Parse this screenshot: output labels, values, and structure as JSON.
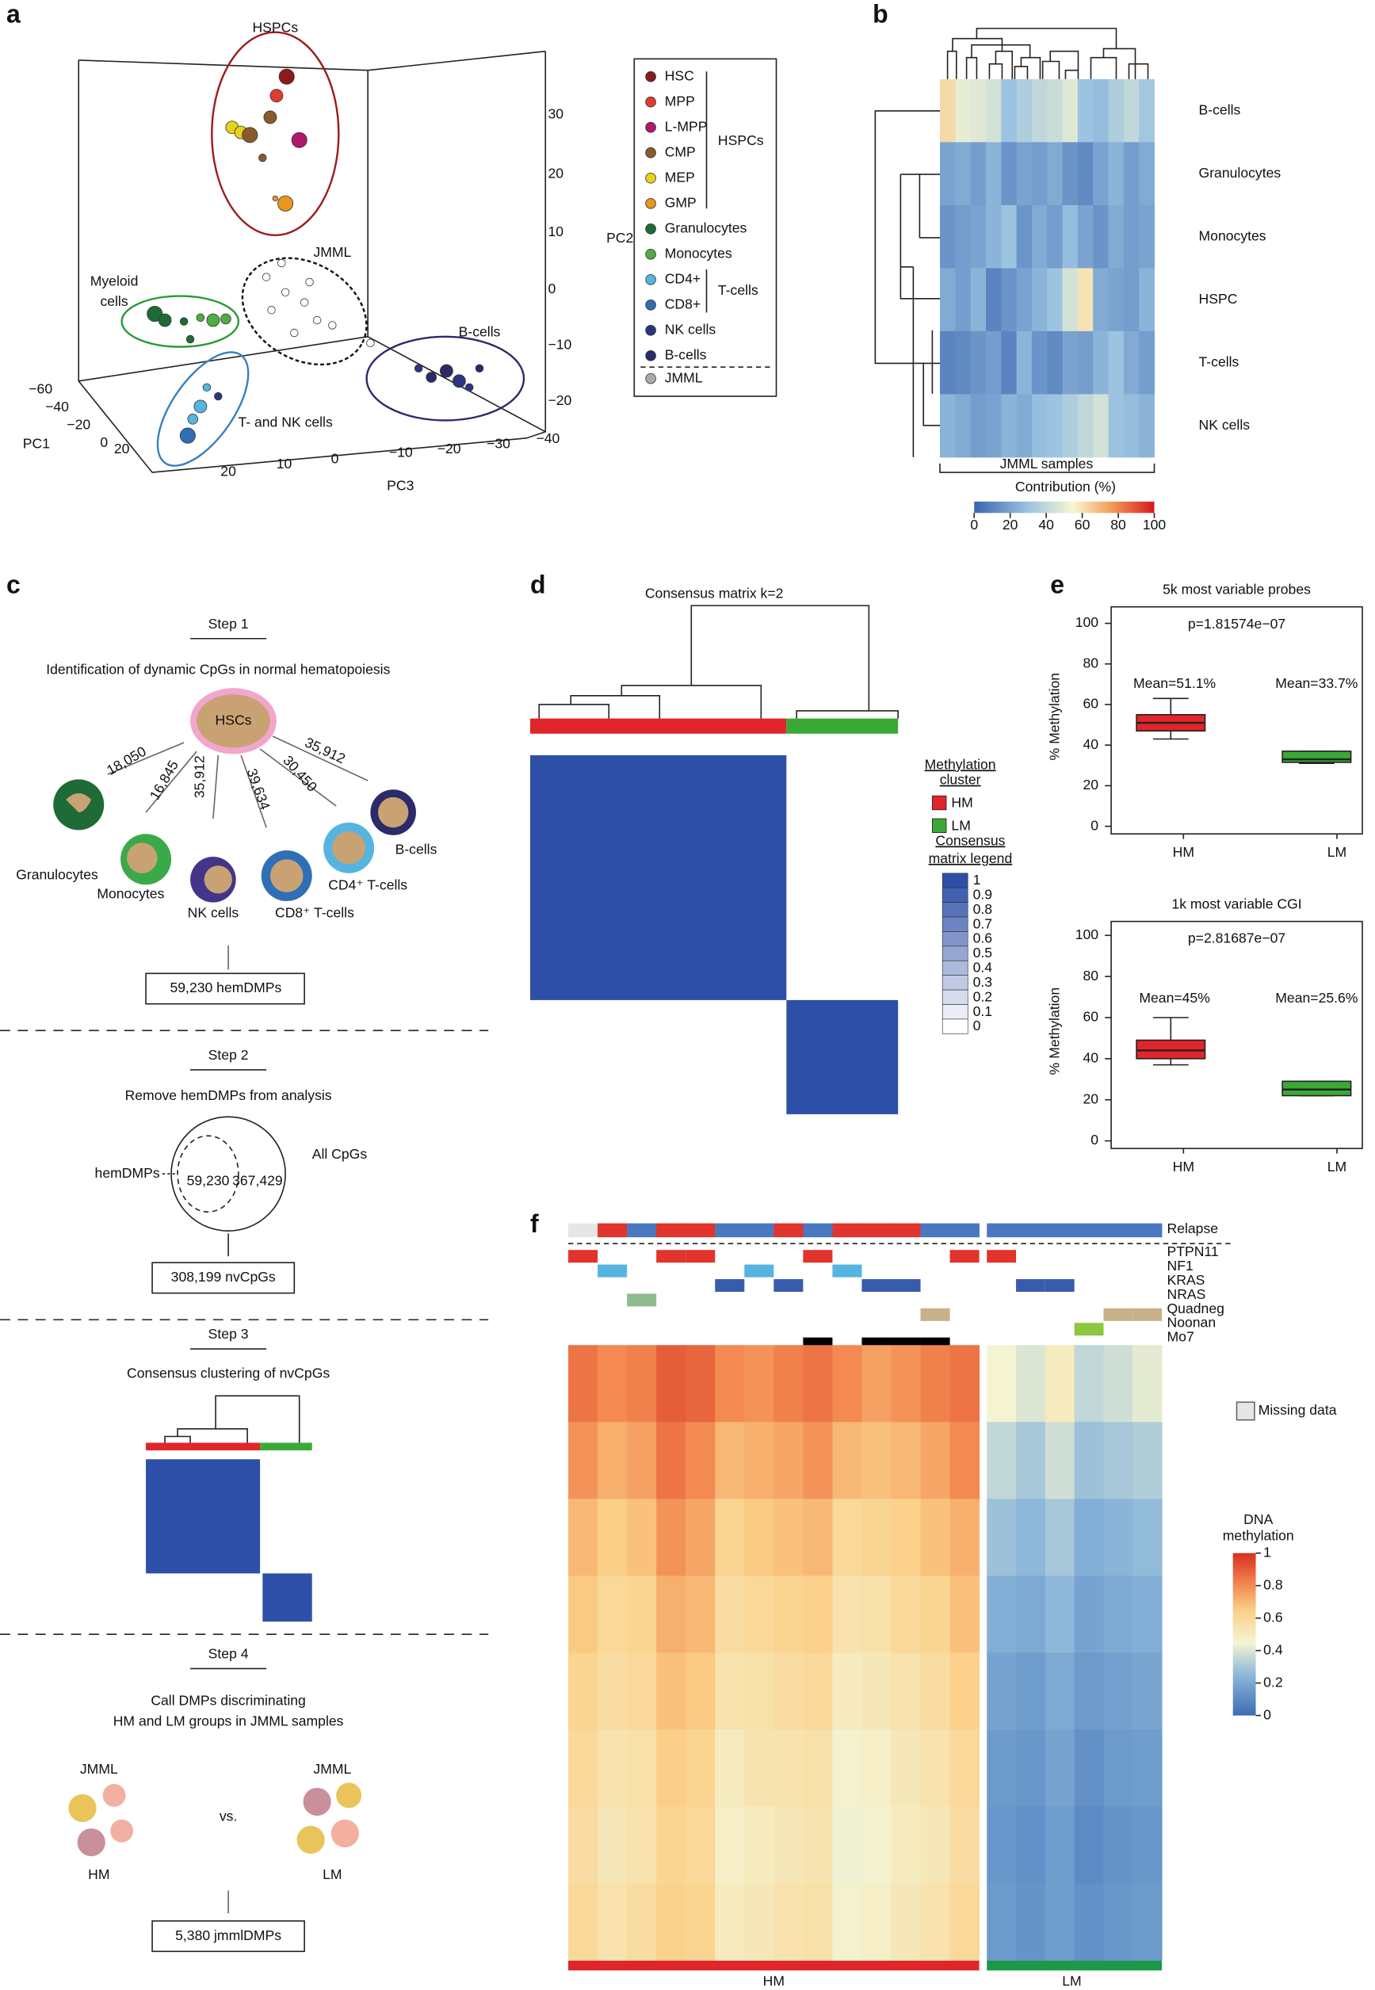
{
  "a": {
    "label": "a",
    "hspcs": "HSPCs",
    "jmml": "JMML",
    "myeloid": [
      "Myeloid",
      "cells"
    ],
    "tnk": "T- and NK cells",
    "bcells": "B-cells",
    "pc1": "PC1",
    "pc2": "PC2",
    "pc3": "PC3",
    "pc2_ticks": [
      "30",
      "20",
      "10",
      "0",
      "−10",
      "−20"
    ],
    "pc1_ticks": [
      "−60",
      "−40",
      "−20",
      "0",
      "20"
    ],
    "pc3_ticks": [
      "20",
      "10",
      "0",
      "−10",
      "−20",
      "−30",
      "−40"
    ],
    "legend": [
      {
        "name": "HSC",
        "color": "#8b1a1a"
      },
      {
        "name": "MPP",
        "color": "#e03c31"
      },
      {
        "name": "L-MPP",
        "color": "#b0186a"
      },
      {
        "name": "CMP",
        "color": "#8b5a2b"
      },
      {
        "name": "MEP",
        "color": "#e6d21a"
      },
      {
        "name": "GMP",
        "color": "#e8961e"
      },
      {
        "name": "Granulocytes",
        "color": "#1f6b37"
      },
      {
        "name": "Monocytes",
        "color": "#4fae3f"
      },
      {
        "name": "CD4+",
        "color": "#56b4e0"
      },
      {
        "name": "CD8+",
        "color": "#2f6fb5"
      },
      {
        "name": "NK cells",
        "color": "#2a3580"
      },
      {
        "name": "B-cells",
        "color": "#2b2a6a"
      },
      {
        "name": "JMML",
        "color": "#aaaaaa"
      }
    ],
    "legend_hspcs": "HSPCs",
    "legend_tcells": "T-cells"
  },
  "b": {
    "label": "b",
    "rows": [
      "B-cells",
      "Granulocytes",
      "Monocytes",
      "HSPC",
      "T-cells",
      "NK cells"
    ],
    "values": [
      [
        62,
        50,
        48,
        45,
        30,
        35,
        40,
        42,
        48,
        30,
        28,
        35,
        40,
        32
      ],
      [
        20,
        22,
        18,
        25,
        15,
        20,
        18,
        22,
        15,
        12,
        20,
        25,
        18,
        22
      ],
      [
        15,
        18,
        20,
        25,
        30,
        15,
        22,
        18,
        28,
        20,
        15,
        22,
        18,
        20
      ],
      [
        22,
        18,
        25,
        10,
        15,
        20,
        25,
        30,
        45,
        60,
        22,
        20,
        18,
        25
      ],
      [
        10,
        12,
        15,
        18,
        10,
        25,
        15,
        12,
        20,
        18,
        25,
        30,
        22,
        18
      ],
      [
        25,
        22,
        18,
        20,
        25,
        22,
        28,
        30,
        35,
        40,
        45,
        30,
        28,
        25
      ]
    ],
    "xlabel": "JMML samples",
    "scale_title": "Contribution (%)",
    "scale_ticks": [
      0,
      20,
      40,
      60,
      80,
      100
    ]
  },
  "c": {
    "label": "c",
    "step1": "Step 1",
    "step1_text": "Identification of dynamic CpGs in normal hematopoiesis",
    "hscs": "HSCs",
    "counts": [
      "18,050",
      "16,845",
      "35,912",
      "39,634",
      "30,450",
      "35,912"
    ],
    "cells": [
      "Granulocytes",
      "Monocytes",
      "NK cells",
      "CD8⁺ T-cells",
      "CD4⁺ T-cells",
      "B-cells"
    ],
    "box1": "59,230 hemDMPs",
    "step2": "Step 2",
    "step2_text": "Remove hemDMPs from  analysis",
    "hemdmps": "hemDMPs",
    "allcpgs": "All CpGs",
    "inner": "59,230",
    "outer": "367,429",
    "box2": "308,199 nvCpGs",
    "step3": "Step 3",
    "step3_text": "Consensus clustering of nvCpGs",
    "step4": "Step 4",
    "step4_text": [
      "Call DMPs discriminating",
      "HM and LM groups in JMML samples"
    ],
    "jmml": "JMML",
    "vs": "vs.",
    "hm": "HM",
    "lm": "LM",
    "box3": "5,380 jmmlDMPs"
  },
  "d": {
    "label": "d",
    "title": "Consensus matrix k=2",
    "cluster_title": [
      "Methylation",
      "cluster"
    ],
    "hm": "HM",
    "lm": "LM",
    "legend_title": [
      "Consensus",
      "matrix legend"
    ],
    "legend_ticks": [
      1,
      0.9,
      0.8,
      0.7,
      0.6,
      0.5,
      0.4,
      0.3,
      0.2,
      0.1,
      0
    ]
  },
  "e": {
    "label": "e",
    "ylabel": "% Methylation",
    "yticks": [
      0,
      20,
      40,
      60,
      80,
      100
    ],
    "categories": [
      "HM",
      "LM"
    ],
    "plots": [
      {
        "title": "5k most variable probes",
        "p": "p=1.81574e−07",
        "means": [
          "Mean=51.1%",
          "Mean=33.7%"
        ],
        "boxes": [
          {
            "lo": 43,
            "q1": 47,
            "median": 51,
            "q3": 55,
            "hi": 63,
            "color": "#e0262b"
          },
          {
            "lo": 31,
            "q1": 31.5,
            "median": 33,
            "q3": 37,
            "hi": 37,
            "color": "#3aa935"
          }
        ]
      },
      {
        "title": "1k most variable CGI",
        "p": "p=2.81687e−07",
        "means": [
          "Mean=45%",
          "Mean=25.6%"
        ],
        "boxes": [
          {
            "lo": 37,
            "q1": 40,
            "median": 44,
            "q3": 49,
            "hi": 60,
            "color": "#e0262b"
          },
          {
            "lo": 22,
            "q1": 22,
            "median": 25,
            "q3": 29,
            "hi": 29,
            "color": "#3aa935"
          }
        ]
      }
    ]
  },
  "f": {
    "label": "f",
    "relapse": {
      "name": "Relapse",
      "values": [
        null,
        1,
        0,
        1,
        1,
        0,
        0,
        1,
        0,
        1,
        1,
        1,
        0,
        0,
        0,
        0,
        0,
        0,
        0,
        0
      ],
      "yes": "#e0342c",
      "no": "#4a78c0",
      "missing": "#e6e6e6"
    },
    "tracks": [
      {
        "name": "PTPN11",
        "color": "#e0342c",
        "values": [
          1,
          0,
          0,
          1,
          1,
          0,
          0,
          0,
          1,
          0,
          0,
          0,
          0,
          1,
          1,
          0,
          0,
          0,
          0,
          0
        ]
      },
      {
        "name": "NF1",
        "color": "#56b4e0",
        "values": [
          0,
          1,
          0,
          0,
          0,
          0,
          1,
          0,
          0,
          1,
          0,
          0,
          0,
          0,
          0,
          0,
          0,
          0,
          0,
          0
        ]
      },
      {
        "name": "KRAS",
        "color": "#3a5bad",
        "values": [
          0,
          0,
          0,
          0,
          0,
          1,
          0,
          1,
          0,
          0,
          1,
          1,
          0,
          0,
          0,
          1,
          1,
          0,
          0,
          0
        ]
      },
      {
        "name": "NRAS",
        "color": "#8fbc8f",
        "values": [
          0,
          0,
          1,
          0,
          0,
          0,
          0,
          0,
          0,
          0,
          0,
          0,
          0,
          0,
          0,
          0,
          0,
          0,
          0,
          0
        ]
      },
      {
        "name": "Quadneg",
        "color": "#c8b08a",
        "values": [
          0,
          0,
          0,
          0,
          0,
          0,
          0,
          0,
          0,
          0,
          0,
          0,
          1,
          0,
          0,
          0,
          0,
          0,
          1,
          1
        ]
      },
      {
        "name": "Noonan",
        "color": "#8dc63f",
        "values": [
          0,
          0,
          0,
          0,
          0,
          0,
          0,
          0,
          0,
          0,
          0,
          0,
          0,
          0,
          0,
          0,
          0,
          1,
          0,
          0
        ]
      },
      {
        "name": "Mo7",
        "color": "#000000",
        "values": [
          0,
          0,
          0,
          0,
          0,
          0,
          0,
          0,
          1,
          0,
          1,
          1,
          1,
          0,
          0,
          0,
          0,
          0,
          0,
          0
        ]
      }
    ],
    "heatmap": [
      [
        0.85,
        0.8,
        0.82,
        0.9,
        0.88,
        0.8,
        0.78,
        0.82,
        0.85,
        0.8,
        0.75,
        0.78,
        0.82,
        0.85,
        0.45,
        0.4,
        0.5,
        0.35,
        0.38,
        0.42
      ],
      [
        0.78,
        0.72,
        0.75,
        0.85,
        0.8,
        0.7,
        0.72,
        0.74,
        0.78,
        0.7,
        0.68,
        0.7,
        0.74,
        0.8,
        0.35,
        0.3,
        0.38,
        0.28,
        0.3,
        0.32
      ],
      [
        0.7,
        0.65,
        0.68,
        0.78,
        0.74,
        0.62,
        0.66,
        0.68,
        0.7,
        0.6,
        0.62,
        0.64,
        0.68,
        0.72,
        0.28,
        0.25,
        0.3,
        0.22,
        0.24,
        0.26
      ],
      [
        0.66,
        0.6,
        0.62,
        0.72,
        0.7,
        0.58,
        0.6,
        0.62,
        0.64,
        0.55,
        0.56,
        0.6,
        0.62,
        0.68,
        0.22,
        0.2,
        0.25,
        0.18,
        0.2,
        0.22
      ],
      [
        0.62,
        0.58,
        0.6,
        0.68,
        0.66,
        0.55,
        0.56,
        0.58,
        0.6,
        0.5,
        0.52,
        0.55,
        0.58,
        0.64,
        0.18,
        0.16,
        0.2,
        0.15,
        0.17,
        0.19
      ],
      [
        0.6,
        0.55,
        0.56,
        0.65,
        0.62,
        0.5,
        0.54,
        0.55,
        0.56,
        0.46,
        0.48,
        0.52,
        0.55,
        0.6,
        0.15,
        0.14,
        0.18,
        0.12,
        0.15,
        0.16
      ],
      [
        0.58,
        0.52,
        0.55,
        0.62,
        0.6,
        0.48,
        0.5,
        0.52,
        0.54,
        0.44,
        0.46,
        0.5,
        0.52,
        0.58,
        0.14,
        0.12,
        0.16,
        0.1,
        0.13,
        0.14
      ],
      [
        0.6,
        0.55,
        0.58,
        0.64,
        0.62,
        0.5,
        0.52,
        0.55,
        0.56,
        0.46,
        0.48,
        0.52,
        0.55,
        0.6,
        0.15,
        0.13,
        0.16,
        0.12,
        0.14,
        0.15
      ]
    ],
    "missing": "Missing data",
    "scale_title": [
      "DNA",
      "methylation"
    ],
    "scale_ticks": [
      1,
      0.8,
      0.6,
      0.4,
      0.2,
      0
    ],
    "hm": "HM",
    "lm": "LM"
  }
}
